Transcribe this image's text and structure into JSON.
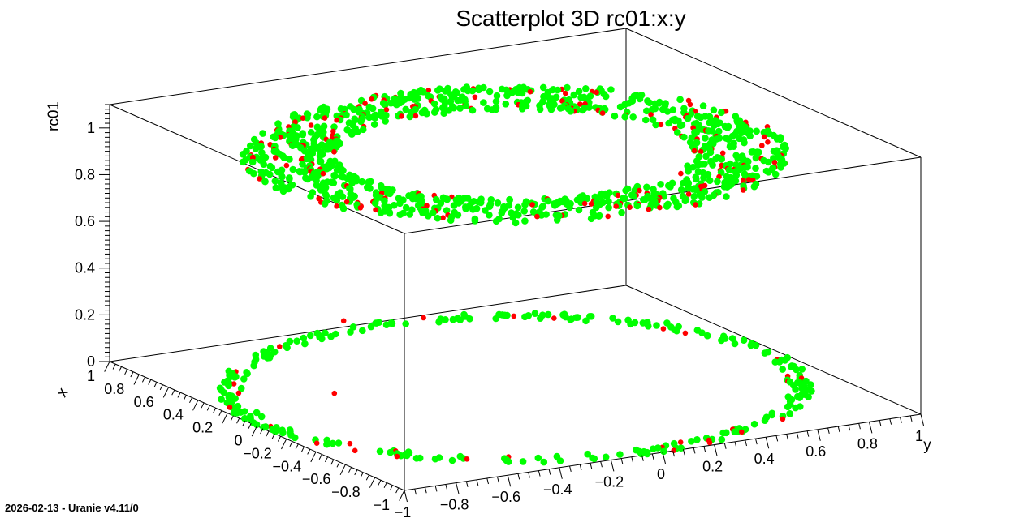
{
  "footer": {
    "text": "2026-02-13 - Uranie v4.11/0"
  },
  "chart_data": {
    "type": "scatter",
    "title": "Scatterplot 3D rc01:x:y",
    "dimensions": [
      "x",
      "y",
      "rc01"
    ],
    "axes": {
      "x": {
        "label": "x",
        "range": [
          -1,
          1
        ],
        "tick_labels": [
          "−1",
          "−0.8",
          "−0.6",
          "−0.4",
          "−0.2",
          "0",
          "0.2",
          "0.4",
          "0.6",
          "0.8",
          "1"
        ]
      },
      "y": {
        "label": "y",
        "range": [
          -1,
          1
        ],
        "tick_labels": [
          "−1",
          "−0.8",
          "−0.6",
          "−0.4",
          "−0.2",
          "0",
          "0.2",
          "0.4",
          "0.6",
          "0.8",
          "1"
        ]
      },
      "rc01": {
        "label": "rc01",
        "range": [
          0,
          1.1
        ],
        "tick_labels": [
          "0",
          "0.2",
          "0.4",
          "0.6",
          "0.8",
          "1"
        ]
      }
    },
    "description_of_data": "Points (x, y) spread over an annulus with radius between about 0.6 and 1; rc01 = 0 for the outer ring (r > 0.92) and rc01 = 1 for the inner ring (r < 0.92). A few outliers lie between.",
    "series": [
      {
        "color": "#00ff00",
        "point_count_approx": 1150
      },
      {
        "color": "#ff0000",
        "point_count_approx": 210
      }
    ],
    "outliers": [
      {
        "x": -0.5,
        "y": -0.95,
        "rc01": 0.58
      },
      {
        "x": -0.35,
        "y": -0.9,
        "rc01": 0.22
      }
    ],
    "grid": false,
    "legend": "none"
  }
}
